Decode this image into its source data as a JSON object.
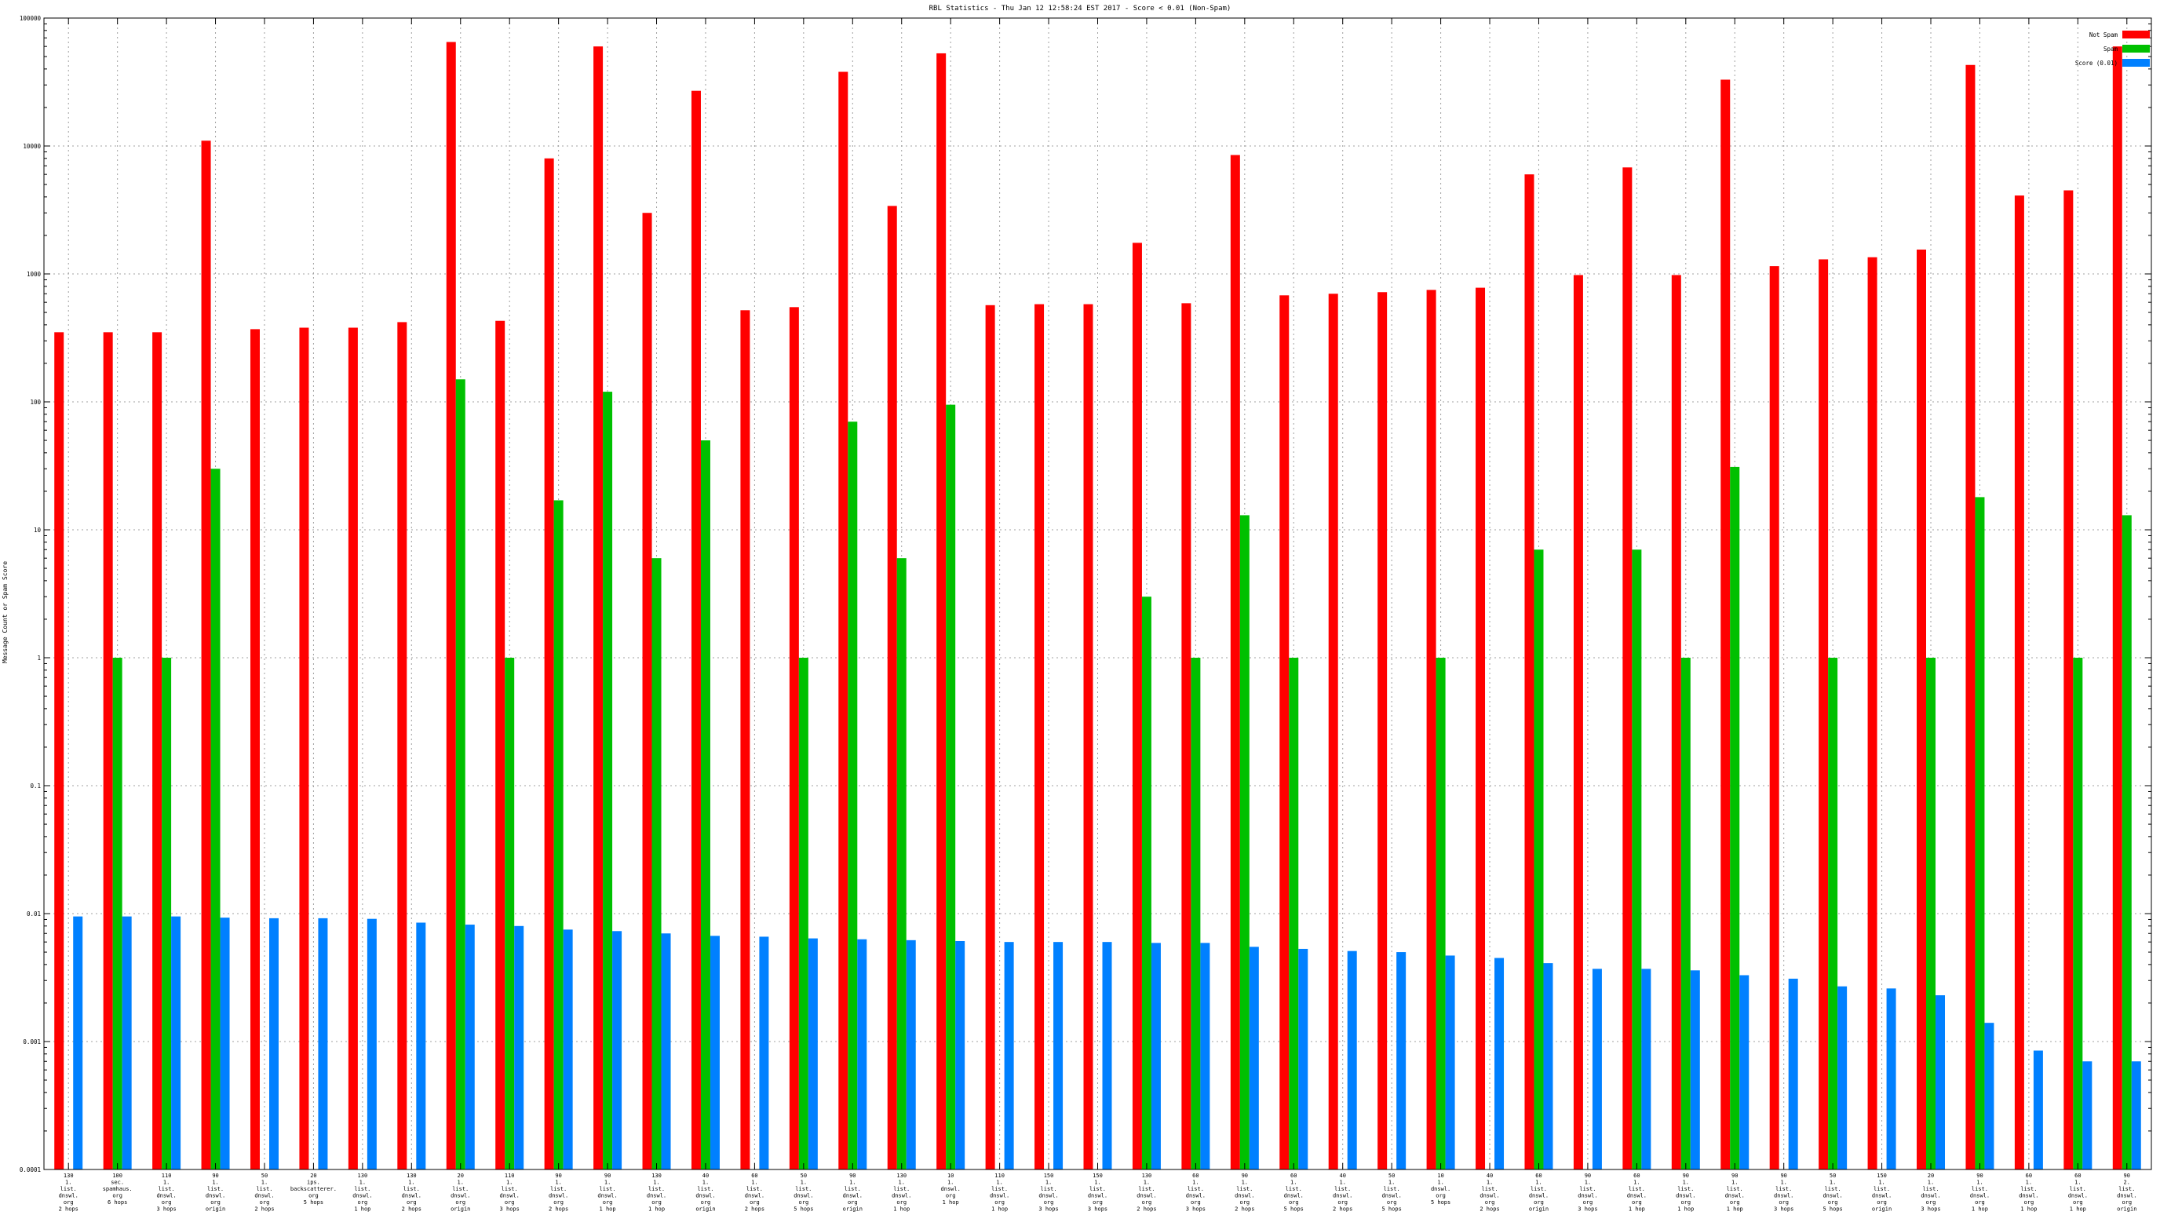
{
  "chart_data": {
    "type": "bar",
    "title": "RBL Statistics - Thu Jan 12 12:58:24 EST 2017 - Score < 0.01 (Non-Spam)",
    "ylabel": "Message Count or Spam Score",
    "xlabel": "",
    "yscale": "log",
    "ylim": [
      0.0001,
      100000
    ],
    "yticks": [
      "0.0001",
      "0.001",
      "0.01",
      "0.1",
      "1",
      "10",
      "100",
      "1000",
      "10000",
      "100000"
    ],
    "grid": true,
    "legend_position": "top-right",
    "categories": [
      [
        "130",
        "1.",
        "list.",
        "dnswl.",
        "org",
        "2 hops"
      ],
      [
        "100",
        "sec.",
        "spamhaus.",
        "org",
        "6 hops"
      ],
      [
        "110",
        "1.",
        "list.",
        "dnswl.",
        "org",
        "3 hops"
      ],
      [
        "90",
        "1.",
        "list.",
        "dnswl.",
        "org",
        "origin"
      ],
      [
        "50",
        "1.",
        "list.",
        "dnswl.",
        "org",
        "2 hops"
      ],
      [
        "20",
        "ips.",
        "backscatterer.",
        "org",
        "5 hops"
      ],
      [
        "130",
        "1.",
        "list.",
        "dnswl.",
        "org",
        "1 hop"
      ],
      [
        "130",
        "1.",
        "list.",
        "dnswl.",
        "org",
        "2 hops"
      ],
      [
        "20",
        "1.",
        "list.",
        "dnswl.",
        "org",
        "origin"
      ],
      [
        "110",
        "1.",
        "list.",
        "dnswl.",
        "org",
        "3 hops"
      ],
      [
        "90",
        "1.",
        "list.",
        "dnswl.",
        "org",
        "2 hops"
      ],
      [
        "90",
        "1.",
        "list.",
        "dnswl.",
        "org",
        "1 hop"
      ],
      [
        "130",
        "1.",
        "list.",
        "dnswl.",
        "org",
        "1 hop"
      ],
      [
        "40",
        "1.",
        "list.",
        "dnswl.",
        "org",
        "origin"
      ],
      [
        "60",
        "1.",
        "list.",
        "dnswl.",
        "org",
        "2 hops"
      ],
      [
        "50",
        "1.",
        "list.",
        "dnswl.",
        "org",
        "5 hops"
      ],
      [
        "90",
        "1.",
        "list.",
        "dnswl.",
        "org",
        "origin"
      ],
      [
        "130",
        "1.",
        "list.",
        "dnswl.",
        "org",
        "1 hop"
      ],
      [
        "10",
        "1.",
        "dnswl.",
        "org",
        "1 hop"
      ],
      [
        "110",
        "1.",
        "list.",
        "dnswl.",
        "org",
        "1 hop"
      ],
      [
        "150",
        "1.",
        "list.",
        "dnswl.",
        "org",
        "3 hops"
      ],
      [
        "150",
        "1.",
        "list.",
        "dnswl.",
        "org",
        "3 hops"
      ],
      [
        "130",
        "1.",
        "list.",
        "dnswl.",
        "org",
        "2 hops"
      ],
      [
        "60",
        "1.",
        "list.",
        "dnswl.",
        "org",
        "3 hops"
      ],
      [
        "90",
        "1.",
        "list.",
        "dnswl.",
        "org",
        "2 hops"
      ],
      [
        "60",
        "1.",
        "list.",
        "dnswl.",
        "org",
        "5 hops"
      ],
      [
        "40",
        "1.",
        "list.",
        "dnswl.",
        "org",
        "2 hops"
      ],
      [
        "50",
        "1.",
        "list.",
        "dnswl.",
        "org",
        "5 hops"
      ],
      [
        "10",
        "1.",
        "dnswl.",
        "org",
        "5 hops"
      ],
      [
        "40",
        "1.",
        "list.",
        "dnswl.",
        "org",
        "2 hops"
      ],
      [
        "60",
        "1.",
        "list.",
        "dnswl.",
        "org",
        "origin"
      ],
      [
        "90",
        "1.",
        "list.",
        "dnswl.",
        "org",
        "3 hops"
      ],
      [
        "60",
        "1.",
        "list.",
        "dnswl.",
        "org",
        "1 hop"
      ],
      [
        "90",
        "1.",
        "list.",
        "dnswl.",
        "org",
        "1 hop"
      ],
      [
        "90",
        "1.",
        "list.",
        "dnswl.",
        "org",
        "1 hop"
      ],
      [
        "90",
        "1.",
        "list.",
        "dnswl.",
        "org",
        "3 hops"
      ],
      [
        "50",
        "1.",
        "list.",
        "dnswl.",
        "org",
        "5 hops"
      ],
      [
        "150",
        "1.",
        "list.",
        "dnswl.",
        "org",
        "origin"
      ],
      [
        "20",
        "1.",
        "list.",
        "dnswl.",
        "org",
        "3 hops"
      ],
      [
        "90",
        "1.",
        "list.",
        "dnswl.",
        "org",
        "1 hop"
      ],
      [
        "60",
        "1.",
        "list.",
        "dnswl.",
        "org",
        "1 hop"
      ],
      [
        "60",
        "1.",
        "list.",
        "dnswl.",
        "org",
        "1 hop"
      ],
      [
        "90",
        "2.",
        "list.",
        "dnswl.",
        "org",
        "origin"
      ]
    ],
    "series": [
      {
        "name": "Not Spam",
        "color": "#ff0000",
        "values": [
          350,
          350,
          350,
          11000,
          370,
          380,
          380,
          420,
          65000,
          430,
          8000,
          60000,
          3000,
          27000,
          520,
          550,
          38000,
          3400,
          53000,
          570,
          580,
          580,
          1750,
          590,
          8500,
          680,
          700,
          720,
          750,
          780,
          6000,
          980,
          6800,
          980,
          33000,
          1150,
          1300,
          1350,
          1550,
          43000,
          4100,
          4500,
          60000
        ]
      },
      {
        "name": "Spam",
        "color": "#00c000",
        "values": [
          null,
          1,
          1,
          30,
          null,
          null,
          null,
          null,
          150,
          1,
          17,
          120,
          6,
          50,
          null,
          1,
          70,
          6,
          95,
          null,
          null,
          null,
          3,
          1,
          13,
          1,
          null,
          null,
          1,
          null,
          7,
          null,
          7,
          1,
          31,
          null,
          1,
          null,
          1,
          18,
          null,
          1,
          13
        ]
      },
      {
        "name": "Score (0.01)",
        "color": "#0080ff",
        "values": [
          0.0095,
          0.0095,
          0.0095,
          0.0093,
          0.0092,
          0.0092,
          0.0091,
          0.0085,
          0.0082,
          0.008,
          0.0075,
          0.0073,
          0.007,
          0.0067,
          0.0066,
          0.0064,
          0.0063,
          0.0062,
          0.0061,
          0.006,
          0.006,
          0.006,
          0.0059,
          0.0059,
          0.0055,
          0.0053,
          0.0051,
          0.005,
          0.0047,
          0.0045,
          0.0041,
          0.0037,
          0.0037,
          0.0036,
          0.0033,
          0.0031,
          0.0027,
          0.0026,
          0.0023,
          0.0014,
          0.00085,
          0.0007,
          0.0007
        ]
      }
    ]
  }
}
